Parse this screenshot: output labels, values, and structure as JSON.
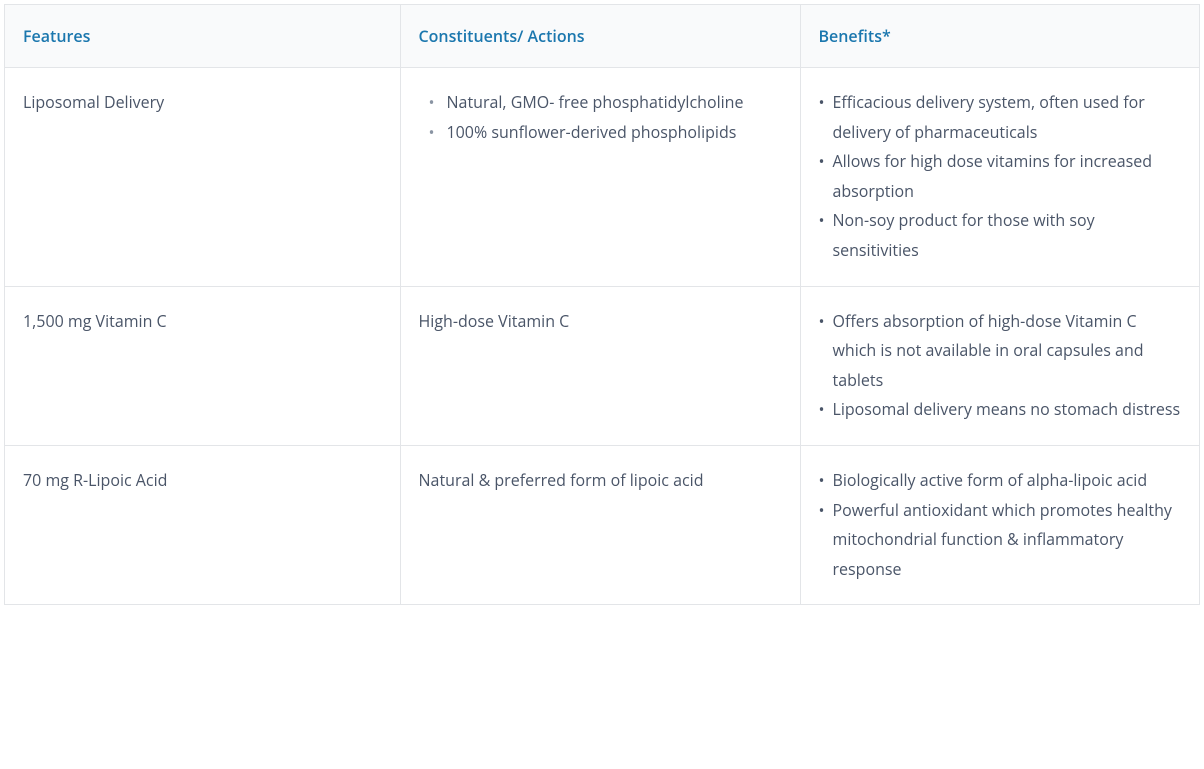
{
  "table": {
    "columns": [
      "Features",
      "Constituents/ Actions",
      "Benefits*"
    ],
    "header_color": "#1b77ae",
    "header_bg": "#f9fafb",
    "text_color": "#4a5568",
    "border_color": "#e3e5e8",
    "font_size": 16,
    "rows": [
      {
        "feature": "Liposomal Delivery",
        "constituents_type": "list_indented",
        "constituents": [
          "Natural, GMO- free phosphatidylcholine",
          "100% sunflower-derived phospholipids"
        ],
        "benefits": [
          "Efficacious delivery system, often used for delivery of pharmaceuticals",
          "Allows for high dose vitamins for increased absorption",
          "Non-soy product for those with soy sensitivities"
        ]
      },
      {
        "feature": "1,500 mg Vitamin C",
        "constituents_type": "text",
        "constituents_text": "High-dose Vitamin C",
        "benefits": [
          "Offers absorption of high-dose Vitamin C which is not available in oral capsules and tablets",
          "Liposomal delivery means no stomach distress"
        ]
      },
      {
        "feature": "70 mg R-Lipoic Acid",
        "constituents_type": "text",
        "constituents_text": "Natural & preferred form of lipoic acid",
        "benefits": [
          "Biologically active form of alpha-lipoic acid",
          "Powerful antioxidant which promotes healthy mitochondrial function & inflammatory response"
        ]
      }
    ]
  }
}
